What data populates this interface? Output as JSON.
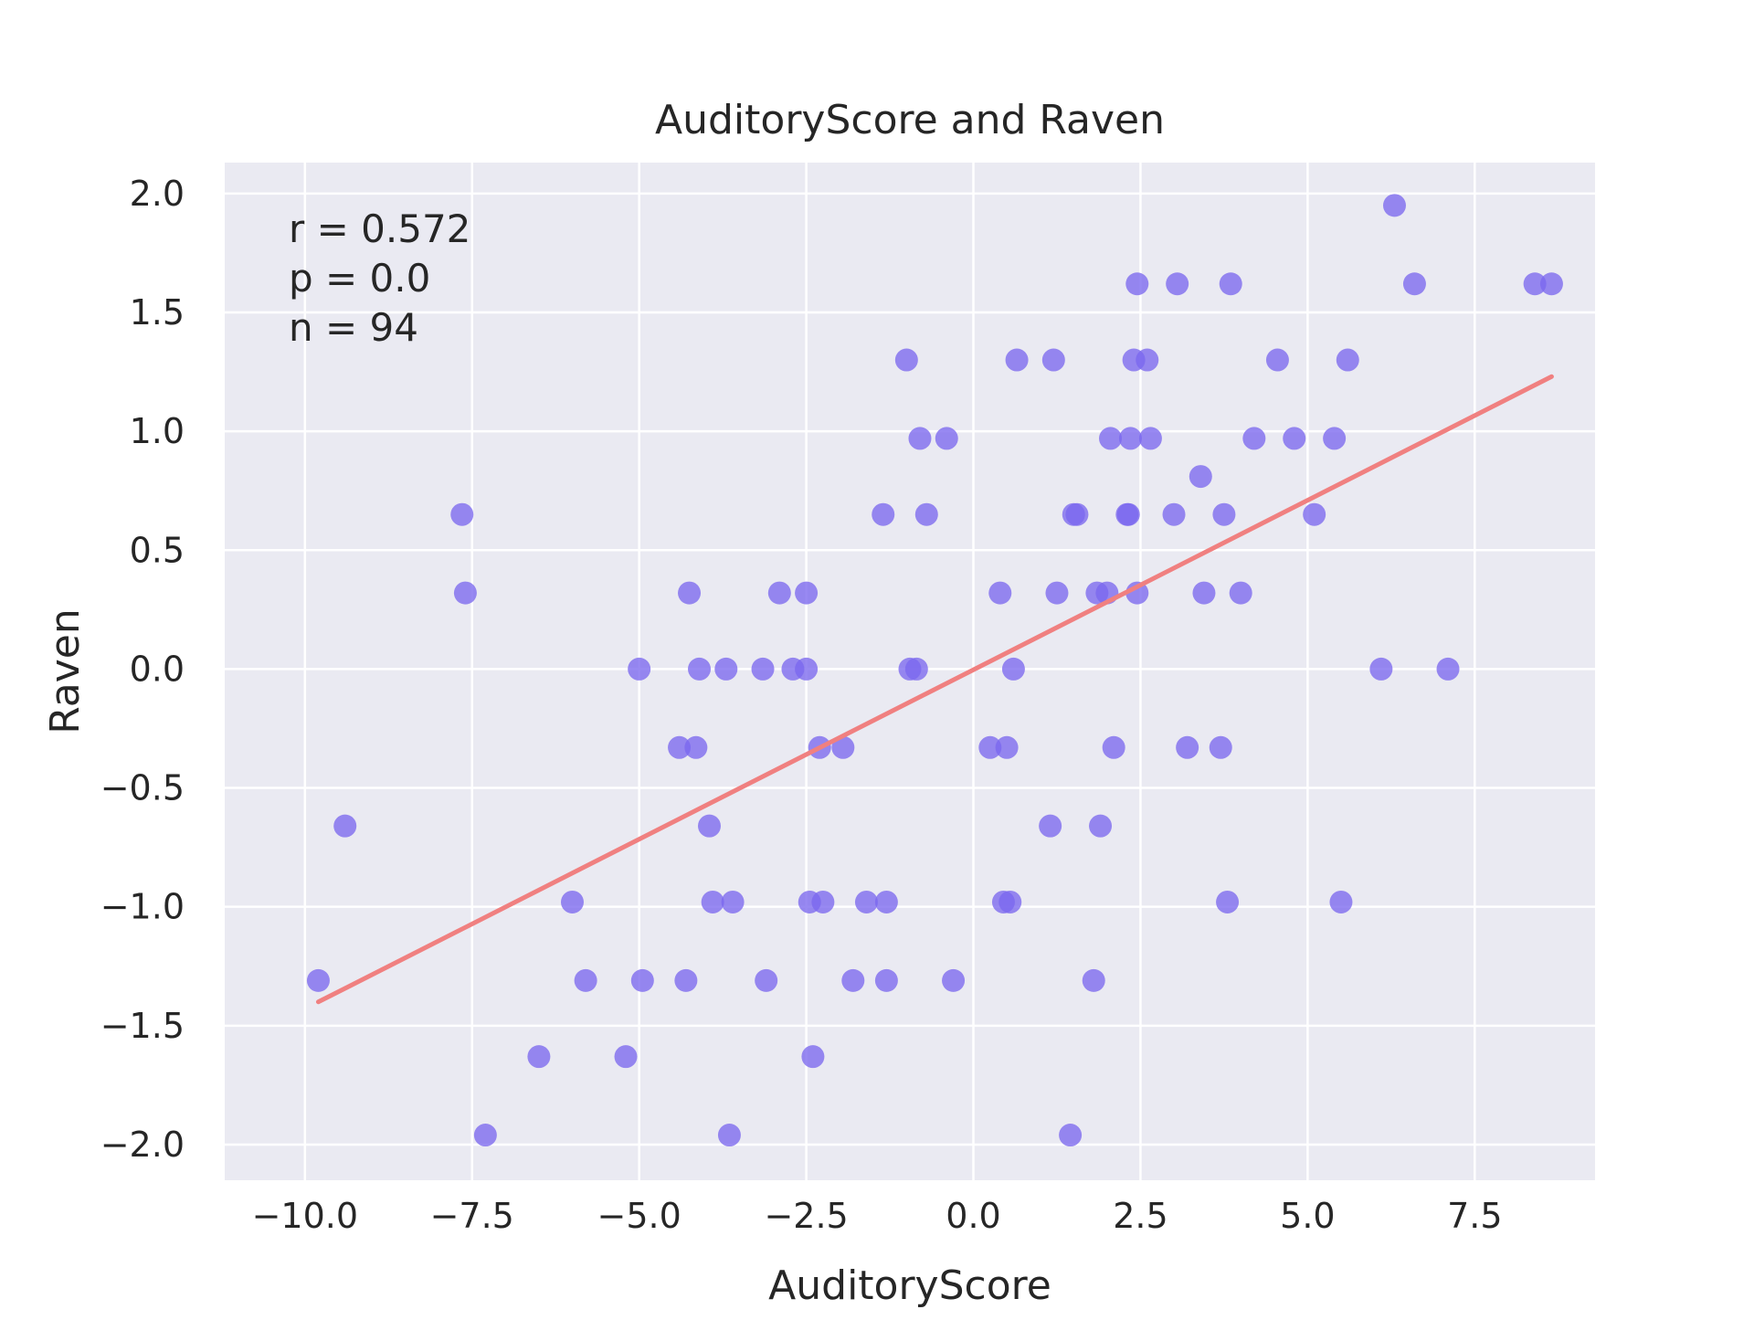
{
  "chart_data": {
    "type": "scatter",
    "title": "AuditoryScore and Raven",
    "xlabel": "AuditoryScore",
    "ylabel": "Raven",
    "xlim": [
      -11.2,
      9.3
    ],
    "ylim": [
      -2.15,
      2.13
    ],
    "xticks": [
      -10.0,
      -7.5,
      -5.0,
      -2.5,
      0.0,
      2.5,
      5.0,
      7.5
    ],
    "xtick_labels": [
      "−10.0",
      "−7.5",
      "−5.0",
      "−2.5",
      "0.0",
      "2.5",
      "5.0",
      "7.5"
    ],
    "yticks": [
      2.0,
      1.5,
      1.0,
      0.5,
      0.0,
      -0.5,
      -1.0,
      -1.5,
      -2.0
    ],
    "ytick_labels": [
      "2.0",
      "1.5",
      "1.0",
      "0.5",
      "0.0",
      "−0.5",
      "−1.0",
      "−1.5",
      "−2.0"
    ],
    "grid": true,
    "background": "#eaeaf2",
    "point_color": "#7b68ee",
    "line_color": "#f08080",
    "annotations": [
      "r = 0.572",
      "p = 0.0",
      "n = 94"
    ],
    "points": [
      {
        "x": -9.8,
        "y": -1.31
      },
      {
        "x": -9.4,
        "y": -0.66
      },
      {
        "x": -7.65,
        "y": 0.65
      },
      {
        "x": -7.6,
        "y": 0.32
      },
      {
        "x": -7.3,
        "y": -1.96
      },
      {
        "x": -6.5,
        "y": -1.63
      },
      {
        "x": -6.0,
        "y": -0.98
      },
      {
        "x": -5.8,
        "y": -1.31
      },
      {
        "x": -5.2,
        "y": -1.63
      },
      {
        "x": -5.0,
        "y": 0.0
      },
      {
        "x": -4.95,
        "y": -1.31
      },
      {
        "x": -4.4,
        "y": -0.33
      },
      {
        "x": -4.3,
        "y": -1.31
      },
      {
        "x": -4.25,
        "y": 0.32
      },
      {
        "x": -4.15,
        "y": -0.33
      },
      {
        "x": -4.1,
        "y": 0.0
      },
      {
        "x": -3.95,
        "y": -0.66
      },
      {
        "x": -3.9,
        "y": -0.98
      },
      {
        "x": -3.7,
        "y": 0.0
      },
      {
        "x": -3.65,
        "y": -1.96
      },
      {
        "x": -3.6,
        "y": -0.98
      },
      {
        "x": -3.15,
        "y": 0.0
      },
      {
        "x": -3.1,
        "y": -1.31
      },
      {
        "x": -2.9,
        "y": 0.32
      },
      {
        "x": -2.7,
        "y": 0.0
      },
      {
        "x": -2.5,
        "y": 0.32
      },
      {
        "x": -2.5,
        "y": 0.0
      },
      {
        "x": -2.45,
        "y": -0.98
      },
      {
        "x": -2.4,
        "y": -1.63
      },
      {
        "x": -2.3,
        "y": -0.33
      },
      {
        "x": -2.25,
        "y": -0.98
      },
      {
        "x": -1.95,
        "y": -0.33
      },
      {
        "x": -1.8,
        "y": -1.31
      },
      {
        "x": -1.6,
        "y": -0.98
      },
      {
        "x": -1.35,
        "y": 0.65
      },
      {
        "x": -1.3,
        "y": -0.98
      },
      {
        "x": -1.3,
        "y": -1.31
      },
      {
        "x": -1.0,
        "y": 1.3
      },
      {
        "x": -0.95,
        "y": 0.0
      },
      {
        "x": -0.85,
        "y": 0.0
      },
      {
        "x": -0.8,
        "y": 0.97
      },
      {
        "x": -0.7,
        "y": 0.65
      },
      {
        "x": -0.4,
        "y": 0.97
      },
      {
        "x": -0.3,
        "y": -1.31
      },
      {
        "x": 0.25,
        "y": -0.33
      },
      {
        "x": 0.4,
        "y": 0.32
      },
      {
        "x": 0.45,
        "y": -0.98
      },
      {
        "x": 0.5,
        "y": -0.33
      },
      {
        "x": 0.55,
        "y": -0.98
      },
      {
        "x": 0.6,
        "y": 0.0
      },
      {
        "x": 0.65,
        "y": 1.3
      },
      {
        "x": 1.15,
        "y": -0.66
      },
      {
        "x": 1.2,
        "y": 1.3
      },
      {
        "x": 1.25,
        "y": 0.32
      },
      {
        "x": 1.45,
        "y": -1.96
      },
      {
        "x": 1.5,
        "y": 0.65
      },
      {
        "x": 1.55,
        "y": 0.65
      },
      {
        "x": 1.8,
        "y": -1.31
      },
      {
        "x": 1.85,
        "y": 0.32
      },
      {
        "x": 1.9,
        "y": -0.66
      },
      {
        "x": 2.0,
        "y": 0.32
      },
      {
        "x": 2.05,
        "y": 0.97
      },
      {
        "x": 2.1,
        "y": -0.33
      },
      {
        "x": 2.3,
        "y": 0.65
      },
      {
        "x": 2.32,
        "y": 0.65
      },
      {
        "x": 2.35,
        "y": 0.97
      },
      {
        "x": 2.4,
        "y": 1.3
      },
      {
        "x": 2.45,
        "y": 1.62
      },
      {
        "x": 2.45,
        "y": 0.32
      },
      {
        "x": 2.6,
        "y": 1.3
      },
      {
        "x": 2.65,
        "y": 0.97
      },
      {
        "x": 3.0,
        "y": 0.65
      },
      {
        "x": 3.05,
        "y": 1.62
      },
      {
        "x": 3.2,
        "y": -0.33
      },
      {
        "x": 3.4,
        "y": 0.81
      },
      {
        "x": 3.45,
        "y": 0.32
      },
      {
        "x": 3.7,
        "y": -0.33
      },
      {
        "x": 3.75,
        "y": 0.65
      },
      {
        "x": 3.8,
        "y": -0.98
      },
      {
        "x": 3.85,
        "y": 1.62
      },
      {
        "x": 4.0,
        "y": 0.32
      },
      {
        "x": 4.2,
        "y": 0.97
      },
      {
        "x": 4.55,
        "y": 1.3
      },
      {
        "x": 4.8,
        "y": 0.97
      },
      {
        "x": 5.1,
        "y": 0.65
      },
      {
        "x": 5.4,
        "y": 0.97
      },
      {
        "x": 5.5,
        "y": -0.98
      },
      {
        "x": 5.6,
        "y": 1.3
      },
      {
        "x": 6.1,
        "y": 0.0
      },
      {
        "x": 6.3,
        "y": 1.95
      },
      {
        "x": 6.6,
        "y": 1.62
      },
      {
        "x": 7.1,
        "y": 0.0
      },
      {
        "x": 8.4,
        "y": 1.62
      },
      {
        "x": 8.65,
        "y": 1.62
      }
    ],
    "fit_line": {
      "x": [
        -9.8,
        8.65
      ],
      "y": [
        -1.4,
        1.23
      ]
    }
  }
}
